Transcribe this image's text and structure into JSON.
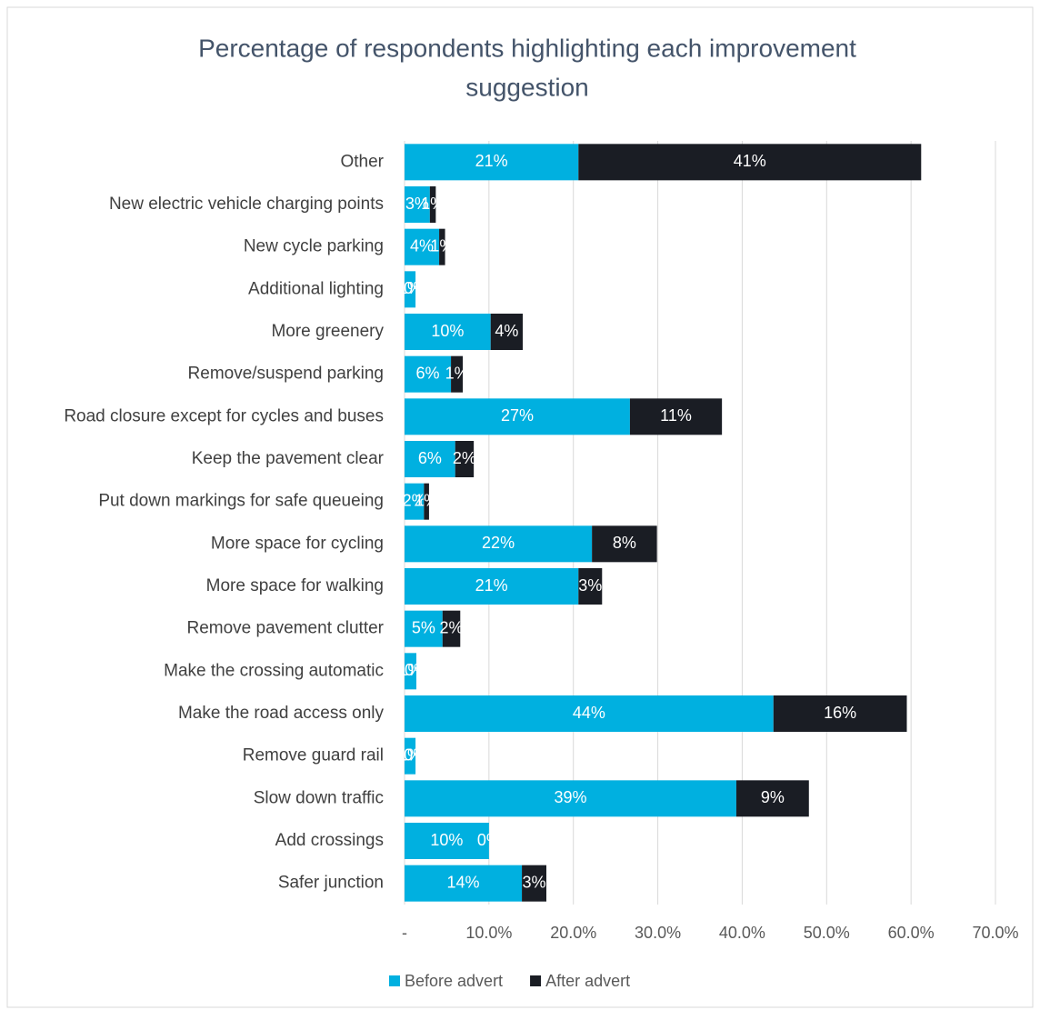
{
  "chart_data": {
    "type": "stacked_barh",
    "title": "Percentage of respondents highlighting each improvement suggestion",
    "categories": [
      "Other",
      "New electric vehicle charging points",
      "New cycle parking",
      "Additional lighting",
      "More greenery",
      "Remove/suspend parking",
      "Road closure except for cycles and buses",
      "Keep the pavement clear",
      "Put down markings for safe queueing",
      "More space for cycling",
      "More space for walking",
      "Remove pavement clutter",
      "Make the crossing automatic",
      "Make the road access only",
      "Remove guard rail",
      "Slow down traffic",
      "Add crossings",
      "Safer junction"
    ],
    "series": [
      {
        "name": "Before advert",
        "color": "#00b0e0",
        "values": [
          20.6,
          3.0,
          4.1,
          1.3,
          10.2,
          5.5,
          26.7,
          6.0,
          2.3,
          22.2,
          20.6,
          4.5,
          1.4,
          43.7,
          1.3,
          39.3,
          10.0,
          13.9
        ],
        "value_labels": [
          "21%",
          "3%",
          "4%",
          "1%",
          "10%",
          "6%",
          "27%",
          "6%",
          "2%",
          "22%",
          "21%",
          "5%",
          "1%",
          "44%",
          "1%",
          "39%",
          "10%",
          "14%"
        ]
      },
      {
        "name": "After advert",
        "color": "#1a1d24",
        "values": [
          40.6,
          0.7,
          0.7,
          0,
          3.8,
          1.4,
          10.9,
          2.2,
          0.6,
          7.7,
          2.8,
          2.1,
          0,
          15.8,
          0,
          8.6,
          0,
          2.9
        ],
        "value_labels": [
          "41%",
          "1%",
          "1%",
          "0%",
          "4%",
          "1%",
          "11%",
          "2%",
          "1%",
          "8%",
          "3%",
          "2%",
          "0%",
          "16%",
          "0%",
          "9%",
          "0%",
          "3%"
        ]
      }
    ],
    "xlim": [
      0,
      70
    ],
    "xticks": [
      {
        "value": 0,
        "label": "-"
      },
      {
        "value": 10,
        "label": "10.0%"
      },
      {
        "value": 20,
        "label": "20.0%"
      },
      {
        "value": 30,
        "label": "30.0%"
      },
      {
        "value": 40,
        "label": "40.0%"
      },
      {
        "value": 50,
        "label": "50.0%"
      },
      {
        "value": 60,
        "label": "60.0%"
      },
      {
        "value": 70,
        "label": "70.0%"
      }
    ],
    "grid": true,
    "legend": "bottom"
  }
}
